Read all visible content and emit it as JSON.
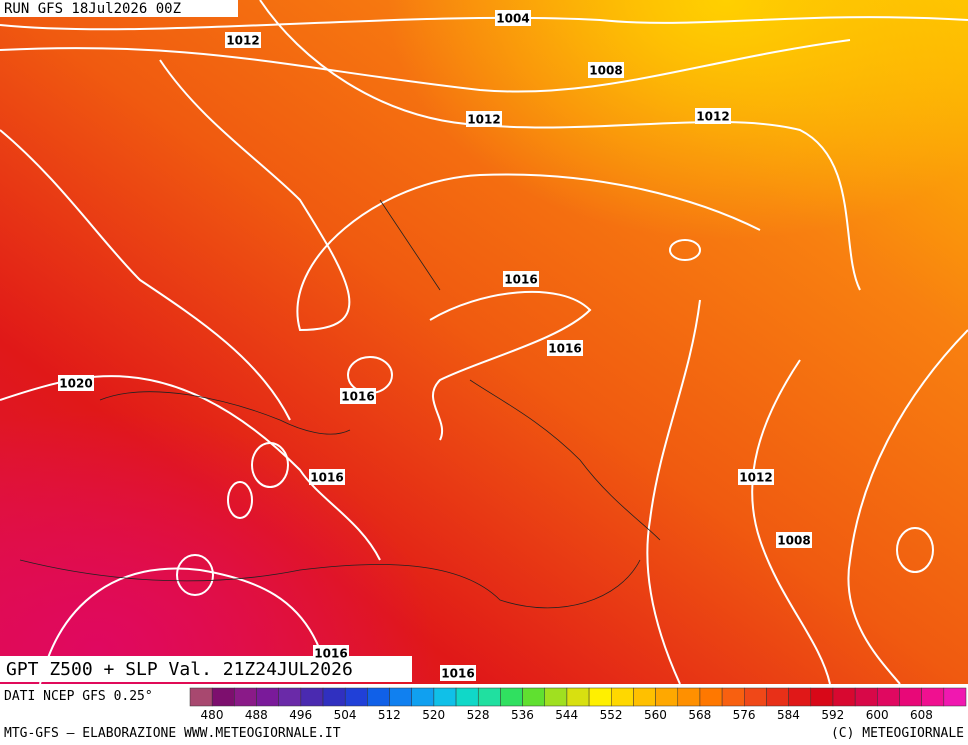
{
  "header": {
    "run": "RUN GFS 18Jul2026 00Z"
  },
  "isobar_labels": [
    "1004",
    "1012",
    "1008",
    "1012",
    "1012",
    "1016",
    "1016",
    "1016",
    "1020",
    "1016",
    "1012",
    "1008",
    "1016",
    "1016"
  ],
  "footer": {
    "title": "GPT Z500 + SLP Val. 21Z24JUL2026",
    "source": "DATI NCEP GFS 0.25°",
    "credit_left": "MTG-GFS — ELABORAZIONE WWW.METEOGIORNALE.IT",
    "credit_right": "(C) METEOGIORNALE"
  },
  "colorbar": {
    "labels": [
      "480",
      "488",
      "496",
      "504",
      "512",
      "520",
      "528",
      "536",
      "544",
      "552",
      "560",
      "568",
      "576",
      "584",
      "592",
      "600",
      "608"
    ],
    "colors": [
      "#a8486f",
      "#7d0f6e",
      "#8a1a88",
      "#7a1a9a",
      "#6a2aa8",
      "#4a2ab0",
      "#3030c0",
      "#2040d8",
      "#1060e8",
      "#1080f0",
      "#10a0f0",
      "#10c0e8",
      "#10d8c8",
      "#20e0a0",
      "#30e060",
      "#60e030",
      "#a0e020",
      "#d8e010",
      "#fff000",
      "#ffd800",
      "#ffc000",
      "#ffa800",
      "#ff9000",
      "#ff7800",
      "#f86010",
      "#f04818",
      "#e83018",
      "#e01818",
      "#d80818",
      "#d80830",
      "#d80848",
      "#e00860",
      "#e80878",
      "#f01090",
      "#f018b0"
    ]
  }
}
